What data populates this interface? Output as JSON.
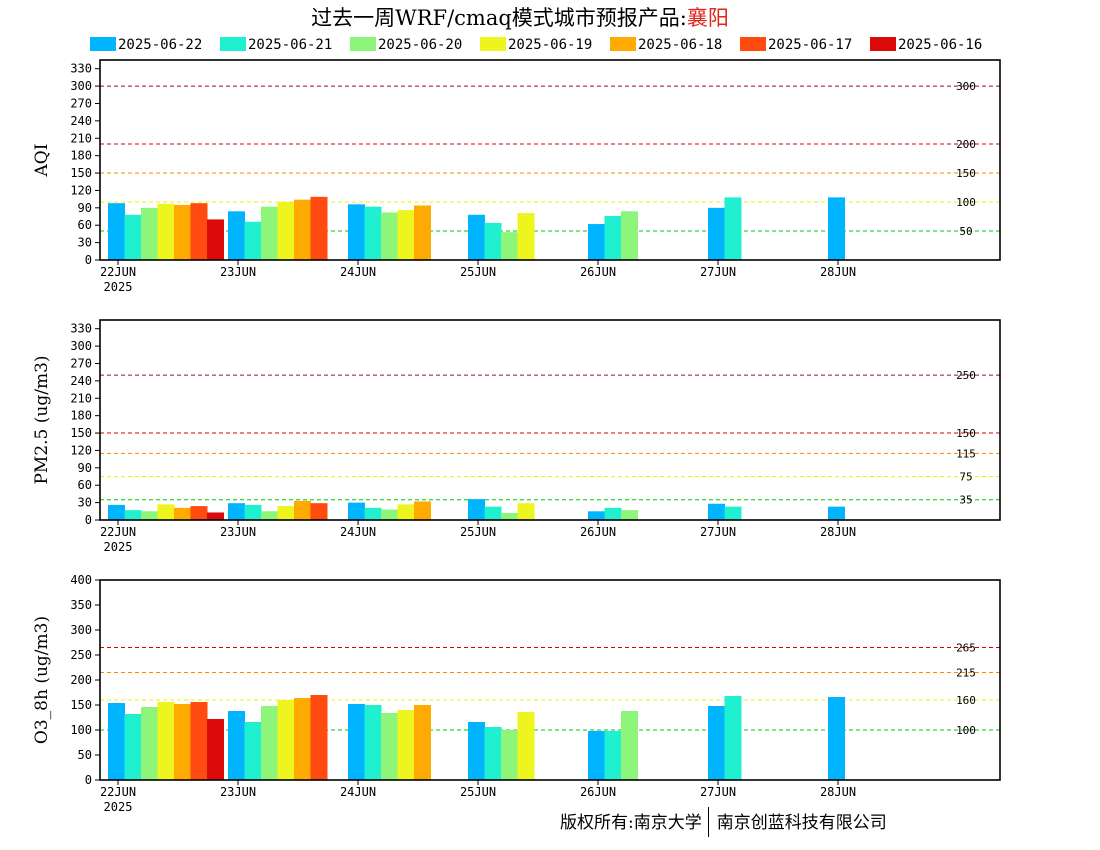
{
  "title": {
    "main": "过去一周WRF/cmaq模式城市预报产品:",
    "city": "襄阳"
  },
  "footer": {
    "left": "版权所有:南京大学",
    "right": "南京创蓝科技有限公司"
  },
  "chart_data": [
    {
      "type": "bar",
      "ylabel": "AQI",
      "ylim": [
        0,
        345
      ],
      "yticks": [
        0,
        30,
        60,
        90,
        120,
        150,
        180,
        210,
        240,
        270,
        300,
        330
      ],
      "categories": [
        "22JUN",
        "23JUN",
        "24JUN",
        "25JUN",
        "26JUN",
        "27JUN",
        "28JUN"
      ],
      "year_label": "2025",
      "series": [
        {
          "name": "2025-06-22",
          "color": "#00b4ff",
          "values": [
            98,
            84,
            96,
            78,
            62,
            90,
            108
          ]
        },
        {
          "name": "2025-06-21",
          "color": "#1ef0d0",
          "values": [
            78,
            66,
            92,
            64,
            76,
            108,
            null
          ]
        },
        {
          "name": "2025-06-20",
          "color": "#8cf57a",
          "values": [
            90,
            92,
            82,
            48,
            84,
            null,
            null
          ]
        },
        {
          "name": "2025-06-19",
          "color": "#eef51e",
          "values": [
            97,
            100,
            86,
            81,
            null,
            null,
            null
          ]
        },
        {
          "name": "2025-06-18",
          "color": "#ffaa00",
          "values": [
            95,
            104,
            94,
            null,
            null,
            null,
            null
          ]
        },
        {
          "name": "2025-06-17",
          "color": "#ff4a10",
          "values": [
            98,
            109,
            null,
            null,
            null,
            null,
            null
          ]
        },
        {
          "name": "2025-06-16",
          "color": "#dc0a0a",
          "values": [
            70,
            null,
            null,
            null,
            null,
            null,
            null
          ]
        }
      ],
      "ref_lines": [
        {
          "value": 300,
          "label": "300",
          "color": "#a0005a"
        },
        {
          "value": 200,
          "label": "200",
          "color": "#dc0000"
        },
        {
          "value": 150,
          "label": "150",
          "color": "#ff8800"
        },
        {
          "value": 100,
          "label": "100",
          "color": "#f0f000"
        },
        {
          "value": 50,
          "label": "50",
          "color": "#00c800"
        }
      ]
    },
    {
      "type": "bar",
      "ylabel": "PM2.5 (ug/m3)",
      "ylim": [
        0,
        345
      ],
      "yticks": [
        0,
        30,
        60,
        90,
        120,
        150,
        180,
        210,
        240,
        270,
        300,
        330
      ],
      "categories": [
        "22JUN",
        "23JUN",
        "24JUN",
        "25JUN",
        "26JUN",
        "27JUN",
        "28JUN"
      ],
      "year_label": "2025",
      "series": [
        {
          "name": "2025-06-22",
          "color": "#00b4ff",
          "values": [
            26,
            29,
            30,
            36,
            15,
            28,
            23
          ]
        },
        {
          "name": "2025-06-21",
          "color": "#1ef0d0",
          "values": [
            17,
            26,
            21,
            23,
            21,
            23,
            null
          ]
        },
        {
          "name": "2025-06-20",
          "color": "#8cf57a",
          "values": [
            15,
            15,
            18,
            12,
            17,
            null,
            null
          ]
        },
        {
          "name": "2025-06-19",
          "color": "#eef51e",
          "values": [
            27,
            24,
            27,
            29,
            null,
            null,
            null
          ]
        },
        {
          "name": "2025-06-18",
          "color": "#ffaa00",
          "values": [
            21,
            33,
            32,
            null,
            null,
            null,
            null
          ]
        },
        {
          "name": "2025-06-17",
          "color": "#ff4a10",
          "values": [
            24,
            29,
            null,
            null,
            null,
            null,
            null
          ]
        },
        {
          "name": "2025-06-16",
          "color": "#dc0a0a",
          "values": [
            13,
            null,
            null,
            null,
            null,
            null,
            null
          ]
        }
      ],
      "ref_lines": [
        {
          "value": 250,
          "label": "250",
          "color": "#a0005a"
        },
        {
          "value": 150,
          "label": "150",
          "color": "#dc0000"
        },
        {
          "value": 115,
          "label": "115",
          "color": "#ff8800"
        },
        {
          "value": 75,
          "label": "75",
          "color": "#f0f000"
        },
        {
          "value": 35,
          "label": "35",
          "color": "#00c800"
        }
      ]
    },
    {
      "type": "bar",
      "ylabel": "O3_8h (ug/m3)",
      "ylim": [
        0,
        400
      ],
      "yticks": [
        0,
        50,
        100,
        150,
        200,
        250,
        300,
        350,
        400
      ],
      "categories": [
        "22JUN",
        "23JUN",
        "24JUN",
        "25JUN",
        "26JUN",
        "27JUN",
        "28JUN"
      ],
      "year_label": "2025",
      "series": [
        {
          "name": "2025-06-22",
          "color": "#00b4ff",
          "values": [
            154,
            138,
            152,
            116,
            98,
            148,
            166
          ]
        },
        {
          "name": "2025-06-21",
          "color": "#1ef0d0",
          "values": [
            132,
            116,
            150,
            106,
            98,
            168,
            null
          ]
        },
        {
          "name": "2025-06-20",
          "color": "#8cf57a",
          "values": [
            146,
            148,
            134,
            100,
            138,
            null,
            null
          ]
        },
        {
          "name": "2025-06-19",
          "color": "#eef51e",
          "values": [
            156,
            160,
            140,
            136,
            null,
            null,
            null
          ]
        },
        {
          "name": "2025-06-18",
          "color": "#ffaa00",
          "values": [
            152,
            164,
            150,
            null,
            null,
            null,
            null
          ]
        },
        {
          "name": "2025-06-17",
          "color": "#ff4a10",
          "values": [
            156,
            170,
            null,
            null,
            null,
            null,
            null
          ]
        },
        {
          "name": "2025-06-16",
          "color": "#dc0a0a",
          "values": [
            122,
            null,
            null,
            null,
            null,
            null,
            null
          ]
        }
      ],
      "ref_lines": [
        {
          "value": 265,
          "label": "265",
          "color": "#dc0000"
        },
        {
          "value": 215,
          "label": "215",
          "color": "#ff8800"
        },
        {
          "value": 160,
          "label": "160",
          "color": "#f0f000"
        },
        {
          "value": 100,
          "label": "100",
          "color": "#00c800"
        }
      ]
    }
  ]
}
